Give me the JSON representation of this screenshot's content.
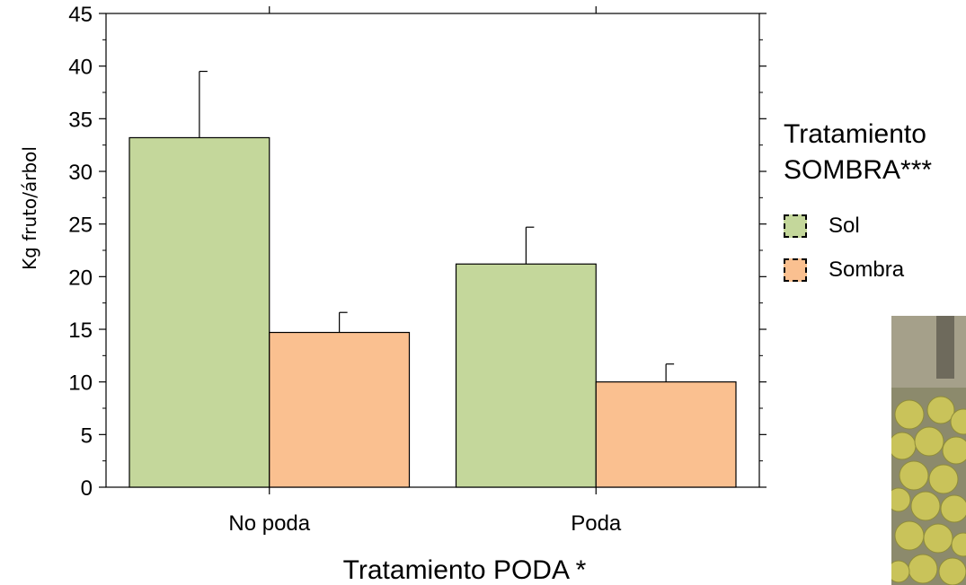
{
  "chart_data": {
    "type": "bar",
    "categories": [
      "No poda",
      "Poda"
    ],
    "series": [
      {
        "name": "Sol",
        "values": [
          33.2,
          21.2
        ],
        "errors": [
          6.3,
          3.5
        ],
        "color": "#c4d79b"
      },
      {
        "name": "Sombra",
        "values": [
          14.7,
          10.0
        ],
        "errors": [
          1.9,
          1.7
        ],
        "color": "#fac090"
      }
    ],
    "title": "",
    "xlabel": "Tratamiento PODA *",
    "ylabel": "Kg fruto/árbol",
    "ylim": [
      0,
      45
    ],
    "yticks": [
      0,
      5,
      10,
      15,
      20,
      25,
      30,
      35,
      40,
      45
    ],
    "grid": false,
    "legend": {
      "title_line1": "Tratamiento",
      "title_line2": "SOMBRA***",
      "position": "right"
    }
  }
}
